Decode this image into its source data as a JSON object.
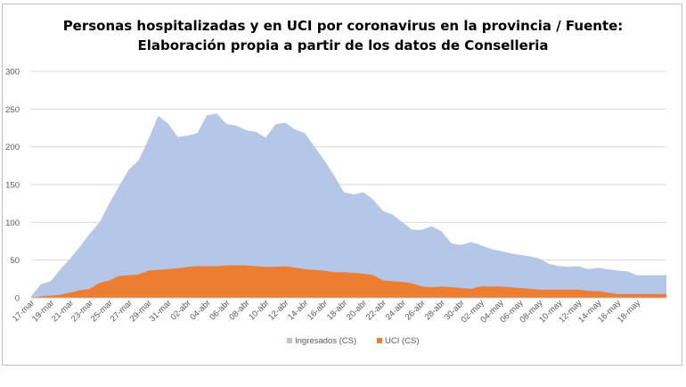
{
  "chart_data": {
    "type": "area",
    "title_line1": "Personas hospitalizadas y en UCI por coronavirus en la provincia / Fuente:",
    "title_line2": "Elaboración propia a partir de los datos de Conselleria",
    "xlabel": "",
    "ylabel": "",
    "ylim": [
      0,
      300
    ],
    "yticks": [
      "0",
      "50",
      "100",
      "150",
      "200",
      "250",
      "300"
    ],
    "grid": true,
    "legend_position": "bottom",
    "x_tick_labels": [
      "17-mar",
      "19-mar",
      "21-mar",
      "23-mar",
      "25-mar",
      "27-mar",
      "29-mar",
      "31-mar",
      "02-abr",
      "04-abr",
      "06-abr",
      "08-abr",
      "10-abr",
      "12-abr",
      "14-abr",
      "16-abr",
      "18-abr",
      "20-abr",
      "22-abr",
      "24-abr",
      "26-abr",
      "28-abr",
      "30-abr",
      "02-may",
      "04-may",
      "06-may",
      "08-may",
      "10-may",
      "12-may",
      "14-may",
      "16-may",
      "18-may"
    ],
    "series": [
      {
        "name": "Ingresados (CS)",
        "color": "#b4c7e7",
        "values": [
          2,
          18,
          22,
          38,
          52,
          68,
          85,
          100,
          125,
          148,
          170,
          182,
          210,
          241,
          231,
          213,
          215,
          218,
          242,
          244,
          230,
          228,
          222,
          220,
          212,
          230,
          232,
          223,
          218,
          200,
          182,
          162,
          140,
          137,
          140,
          130,
          115,
          110,
          100,
          90,
          90,
          95,
          88,
          72,
          70,
          74,
          70,
          65,
          62,
          59,
          57,
          55,
          52,
          45,
          42,
          41,
          42,
          38,
          40,
          38,
          36,
          35,
          30,
          30,
          30,
          30
        ]
      },
      {
        "name": "UCI (CS)",
        "color": "#ed7d31",
        "values": [
          0,
          2,
          3,
          4,
          7,
          10,
          12,
          20,
          23,
          29,
          30,
          31,
          36,
          37,
          38,
          39,
          41,
          42,
          42,
          42,
          43,
          43,
          43,
          42,
          41,
          41,
          42,
          40,
          38,
          37,
          36,
          34,
          34,
          33,
          32,
          30,
          23,
          22,
          21,
          19,
          15,
          14,
          15,
          14,
          13,
          12,
          15,
          15,
          15,
          14,
          13,
          12,
          11,
          11,
          11,
          11,
          11,
          9,
          9,
          7,
          5,
          5,
          5,
          5,
          5,
          5
        ]
      }
    ]
  }
}
